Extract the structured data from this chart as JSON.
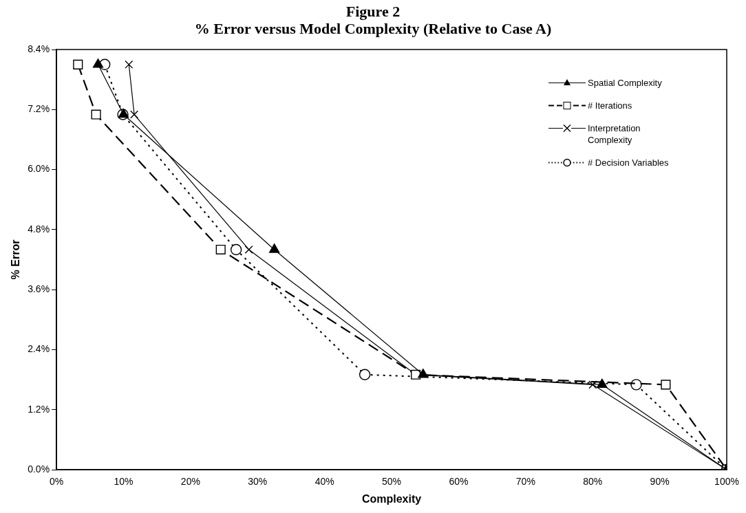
{
  "chart_data": {
    "type": "line",
    "title": "Figure 2",
    "subtitle": "% Error versus Model Complexity (Relative to Case A)",
    "xlabel": "Complexity",
    "ylabel": "% Error",
    "xlim": [
      0,
      100
    ],
    "xticks": [
      {
        "value": 0,
        "label": "0%"
      },
      {
        "value": 10,
        "label": "10%"
      },
      {
        "value": 20,
        "label": "20%"
      },
      {
        "value": 30,
        "label": "30%"
      },
      {
        "value": 40,
        "label": "40%"
      },
      {
        "value": 50,
        "label": "50%"
      },
      {
        "value": 60,
        "label": "60%"
      },
      {
        "value": 70,
        "label": "70%"
      },
      {
        "value": 80,
        "label": "80%"
      },
      {
        "value": 90,
        "label": "90%"
      },
      {
        "value": 100,
        "label": "100%"
      }
    ],
    "ylim": [
      0,
      8.4
    ],
    "yticks": [
      {
        "value": 0,
        "label": "0.0%"
      },
      {
        "value": 1.2,
        "label": "1.2%"
      },
      {
        "value": 2.4,
        "label": "2.4%"
      },
      {
        "value": 3.6,
        "label": "3.6%"
      },
      {
        "value": 4.8,
        "label": "4.8%"
      },
      {
        "value": 6,
        "label": "6.0%"
      },
      {
        "value": 7.2,
        "label": "7.2%"
      },
      {
        "value": 8.4,
        "label": "8.4%"
      }
    ],
    "grid": false,
    "legend": "top right",
    "series": [
      {
        "name": "Spatial Complexity",
        "color": "#000000",
        "marker": "triangle",
        "line_style": "solid",
        "x": [
          6.2,
          10.0,
          32.5,
          54.7,
          81.4,
          100
        ],
        "values": [
          8.1,
          7.1,
          4.4,
          1.9,
          1.7,
          0
        ]
      },
      {
        "name": "# Iterations",
        "color": "#000000",
        "marker": "square",
        "line_style": "dashed",
        "x": [
          3.2,
          5.9,
          24.5,
          53.6,
          90.9,
          100
        ],
        "values": [
          8.1,
          7.1,
          4.4,
          1.9,
          1.7,
          0
        ]
      },
      {
        "name": "Interpretation Complexity",
        "color": "#000000",
        "marker": "cross",
        "line_style": "solid",
        "x": [
          10.8,
          11.6,
          28.7,
          53.6,
          80.0,
          100
        ],
        "values": [
          8.1,
          7.1,
          4.4,
          1.9,
          1.7,
          0
        ]
      },
      {
        "name": "# Decision Variables",
        "color": "#000000",
        "marker": "circle",
        "line_style": "dotted",
        "x": [
          7.2,
          9.9,
          26.8,
          46.0,
          86.5,
          100
        ],
        "values": [
          8.1,
          7.1,
          4.4,
          1.9,
          1.7,
          0
        ]
      }
    ]
  }
}
